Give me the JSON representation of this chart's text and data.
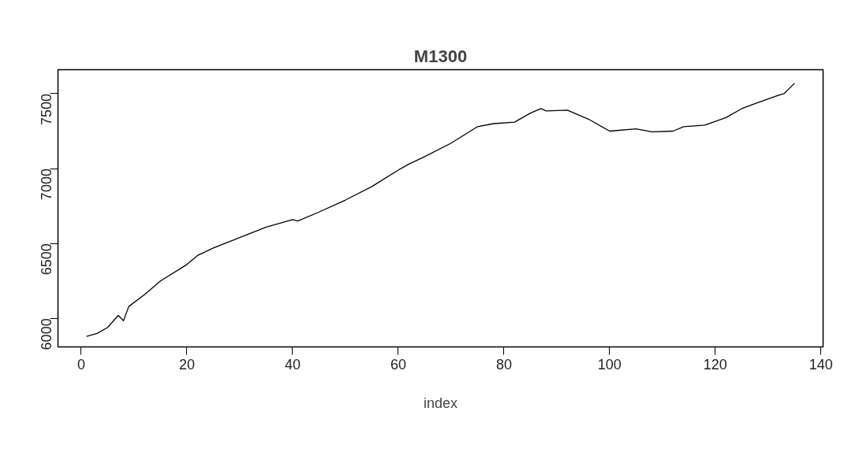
{
  "chart_data": {
    "type": "line",
    "title": "M1300",
    "xlabel": "index",
    "x": [
      1,
      3,
      5,
      7,
      8,
      9,
      12,
      15,
      20,
      22,
      25,
      30,
      35,
      40,
      41,
      45,
      50,
      55,
      60,
      62,
      65,
      70,
      75,
      78,
      82,
      85,
      87,
      88,
      92,
      96,
      100,
      105,
      108,
      112,
      114,
      118,
      122,
      125,
      128,
      132,
      133,
      135
    ],
    "series": [
      {
        "color": "#000000",
        "values": [
          5880,
          5900,
          5940,
          6020,
          5985,
          6080,
          6160,
          6250,
          6360,
          6420,
          6470,
          6540,
          6610,
          6660,
          6650,
          6710,
          6790,
          6880,
          6990,
          7030,
          7080,
          7170,
          7280,
          7300,
          7310,
          7370,
          7400,
          7385,
          7390,
          7330,
          7250,
          7265,
          7245,
          7250,
          7280,
          7290,
          7340,
          7400,
          7440,
          7490,
          7500,
          7570
        ]
      }
    ],
    "xlim": [
      -4.4,
      140.4
    ],
    "ylim": [
      5810,
      7660
    ],
    "xticks": [
      0,
      20,
      40,
      60,
      80,
      100,
      120,
      140
    ],
    "yticks": [
      6000,
      6500,
      7000,
      7500
    ],
    "grid": false,
    "marker": "none",
    "line_style": "solid"
  }
}
